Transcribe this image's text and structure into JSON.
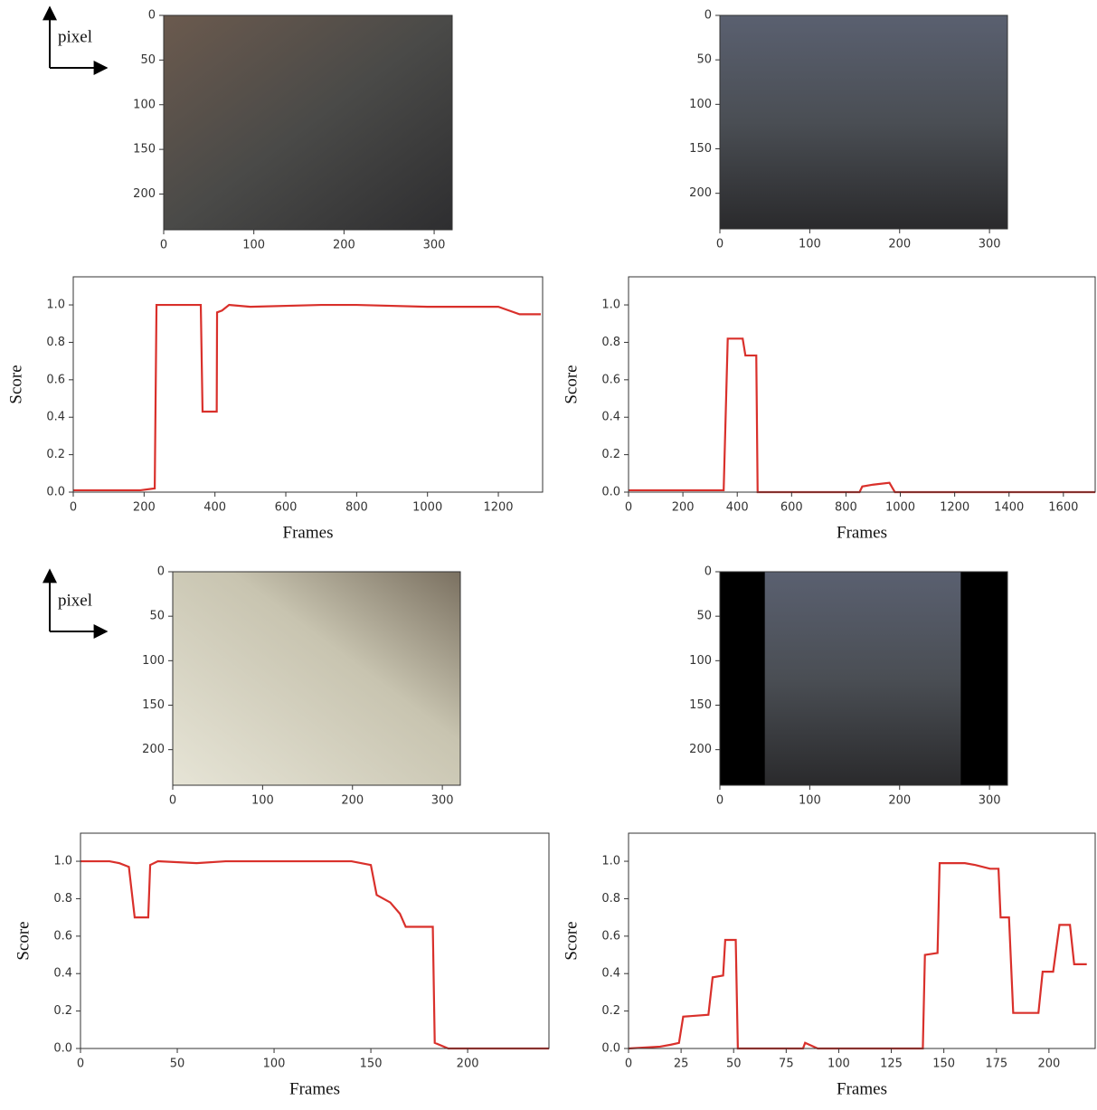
{
  "chart_data": [
    {
      "type": "image",
      "annotation": "pixel",
      "xlim": [
        0,
        320
      ],
      "ylim": [
        240,
        0
      ],
      "xticks": [
        0,
        100,
        200,
        300
      ],
      "yticks": [
        0,
        50,
        100,
        150,
        200
      ]
    },
    {
      "type": "image",
      "xlim": [
        0,
        320
      ],
      "ylim": [
        240,
        0
      ],
      "xticks": [
        0,
        100,
        200,
        300
      ],
      "yticks": [
        0,
        50,
        100,
        150,
        200
      ]
    },
    {
      "type": "line",
      "x_label": "Frames",
      "y_label": "Score",
      "color": "#d9302b",
      "xlim": [
        0,
        1325
      ],
      "ylim": [
        0,
        1.15
      ],
      "xticks": [
        0,
        200,
        400,
        600,
        800,
        1000,
        1200
      ],
      "yticks": [
        {
          "value": 0,
          "label": "0.0"
        },
        0.2,
        0.4,
        0.6,
        0.8,
        {
          "value": 1,
          "label": "1.0"
        }
      ],
      "x": [
        0,
        190,
        230,
        235,
        360,
        365,
        405,
        406,
        420,
        440,
        500,
        700,
        800,
        1000,
        1200,
        1230,
        1260,
        1320
      ],
      "values": [
        0.01,
        0.01,
        0.02,
        1.0,
        1.0,
        0.43,
        0.43,
        0.96,
        0.97,
        1.0,
        0.99,
        1.0,
        1.0,
        0.99,
        0.99,
        0.97,
        0.95,
        0.95
      ]
    },
    {
      "type": "line",
      "x_label": "Frames",
      "y_label": "Score",
      "color": "#d9302b",
      "xlim": [
        0,
        1717
      ],
      "ylim": [
        0,
        1.15
      ],
      "xticks": [
        0,
        200,
        400,
        600,
        800,
        1000,
        1200,
        1400,
        1600
      ],
      "yticks": [
        {
          "value": 0,
          "label": "0.0"
        },
        0.2,
        0.4,
        0.6,
        0.8,
        {
          "value": 1,
          "label": "1.0"
        }
      ],
      "x": [
        0,
        350,
        365,
        420,
        430,
        470,
        475,
        850,
        860,
        900,
        960,
        980,
        1717
      ],
      "values": [
        0.01,
        0.01,
        0.82,
        0.82,
        0.73,
        0.73,
        0.0,
        0.0,
        0.03,
        0.04,
        0.05,
        0.0,
        0.0
      ]
    },
    {
      "type": "image",
      "annotation": "pixel",
      "xlim": [
        0,
        320
      ],
      "ylim": [
        240,
        0
      ],
      "xticks": [
        0,
        100,
        200,
        300
      ],
      "yticks": [
        0,
        50,
        100,
        150,
        200
      ]
    },
    {
      "type": "image",
      "xlim": [
        0,
        320
      ],
      "ylim": [
        240,
        0
      ],
      "xticks": [
        0,
        100,
        200,
        300
      ],
      "yticks": [
        0,
        50,
        100,
        150,
        200
      ]
    },
    {
      "type": "line",
      "x_label": "Frames",
      "y_label": "Score",
      "color": "#d9302b",
      "xlim": [
        0,
        242
      ],
      "ylim": [
        0,
        1.15
      ],
      "xticks": [
        0,
        50,
        100,
        150,
        200
      ],
      "yticks": [
        {
          "value": 0,
          "label": "0.0"
        },
        0.2,
        0.4,
        0.6,
        0.8,
        {
          "value": 1,
          "label": "1.0"
        }
      ],
      "x": [
        0,
        15,
        20,
        25,
        28,
        35,
        36,
        40,
        60,
        75,
        140,
        150,
        153,
        160,
        165,
        168,
        182,
        183,
        190,
        242
      ],
      "values": [
        1.0,
        1.0,
        0.99,
        0.97,
        0.7,
        0.7,
        0.98,
        1.0,
        0.99,
        1.0,
        1.0,
        0.98,
        0.82,
        0.78,
        0.72,
        0.65,
        0.65,
        0.03,
        0.0,
        0.0
      ]
    },
    {
      "type": "line",
      "x_label": "Frames",
      "y_label": "Score",
      "color": "#d9302b",
      "xlim": [
        0,
        222
      ],
      "ylim": [
        0,
        1.15
      ],
      "xticks": [
        0,
        25,
        50,
        75,
        100,
        125,
        150,
        175,
        200
      ],
      "yticks": [
        {
          "value": 0,
          "label": "0.0"
        },
        0.2,
        0.4,
        0.6,
        0.8,
        {
          "value": 1,
          "label": "1.0"
        }
      ],
      "x": [
        0,
        15,
        20,
        24,
        26,
        38,
        40,
        45,
        46,
        51,
        52,
        83,
        84,
        90,
        140,
        141,
        147,
        148,
        160,
        165,
        172,
        176,
        177,
        181,
        183,
        195,
        197,
        202,
        205,
        210,
        212,
        218
      ],
      "values": [
        0.0,
        0.01,
        0.02,
        0.03,
        0.17,
        0.18,
        0.38,
        0.39,
        0.58,
        0.58,
        0.0,
        0.0,
        0.03,
        0.0,
        0.0,
        0.5,
        0.51,
        0.99,
        0.99,
        0.98,
        0.96,
        0.96,
        0.7,
        0.7,
        0.19,
        0.19,
        0.41,
        0.41,
        0.66,
        0.66,
        0.45,
        0.45
      ]
    }
  ]
}
